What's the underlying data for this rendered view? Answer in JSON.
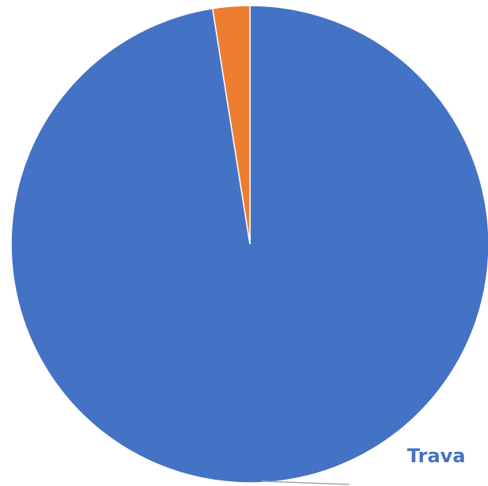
{
  "chart_data": {
    "type": "pie",
    "title": "",
    "slices": [
      {
        "label": "Trava",
        "value": 97.5,
        "color": "#4472C4"
      },
      {
        "label": "",
        "value": 2.5,
        "color": "#ED7D31"
      }
    ],
    "start_angle_deg": 0,
    "direction": "clockwise",
    "legend": "none"
  },
  "labels": {
    "slice0": "Trava"
  },
  "colors": {
    "slice_border": "#ffffff",
    "leader_line": "#a6a6a6",
    "label_text": "#4472C4"
  }
}
